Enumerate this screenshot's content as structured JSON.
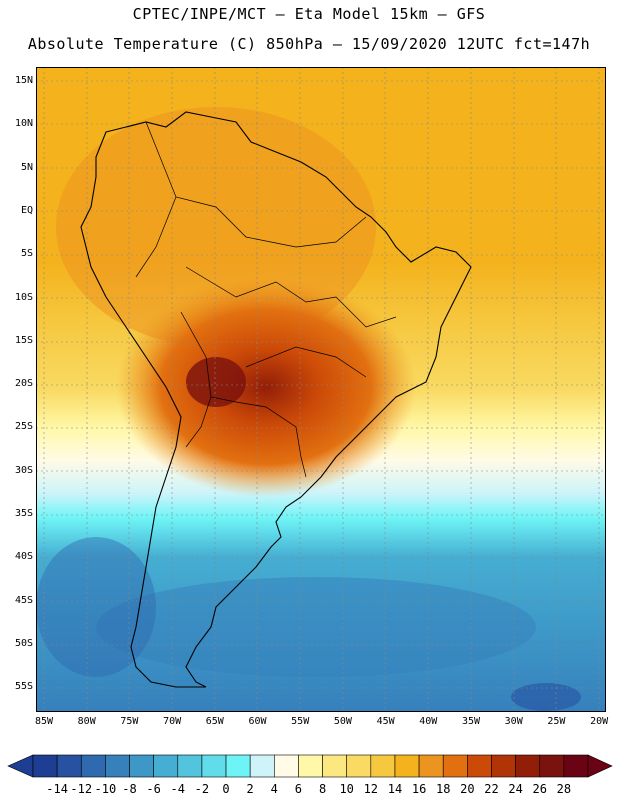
{
  "header": {
    "line1": "CPTEC/INPE/MCT –  Eta Model 15km – GFS",
    "line2": "Absolute Temperature (C) 850hPa – 15/09/2020 12UTC fct=147h"
  },
  "map": {
    "lat_labels": [
      "15N",
      "10N",
      "5N",
      "EQ",
      "5S",
      "10S",
      "15S",
      "20S",
      "25S",
      "30S",
      "35S",
      "40S",
      "45S",
      "50S",
      "55S"
    ],
    "lon_labels": [
      "85W",
      "80W",
      "75W",
      "70W",
      "65W",
      "60W",
      "55W",
      "50W",
      "45W",
      "40W",
      "35W",
      "30W",
      "25W",
      "20W"
    ]
  },
  "colorbar": {
    "labels": [
      "-14",
      "-12",
      "-10",
      "-8",
      "-6",
      "-4",
      "-2",
      "0",
      "2",
      "4",
      "6",
      "8",
      "10",
      "12",
      "14",
      "16",
      "18",
      "20",
      "22",
      "24",
      "26",
      "28"
    ],
    "colors": [
      "#1e3e94",
      "#2752a2",
      "#2f69b0",
      "#3680bc",
      "#3d97c7",
      "#46aed2",
      "#53c4de",
      "#60dcea",
      "#6ef4f6",
      "#cef4fa",
      "#fffbe6",
      "#fff8a8",
      "#fbe880",
      "#f9da62",
      "#f6c840",
      "#f4b21c",
      "#ec9420",
      "#e27010",
      "#cc4a08",
      "#b13406",
      "#921e08",
      "#7a120e",
      "#6a0414"
    ]
  }
}
